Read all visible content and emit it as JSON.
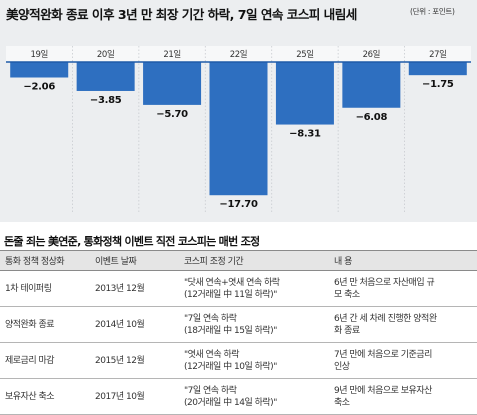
{
  "chart_data": {
    "type": "bar",
    "title": "美양적완화 종료 이후 3년 만 최장 기간 하락, 7일 연속 코스피 내림세",
    "unit": "(단위 : 포인트)",
    "categories": [
      "19일",
      "20일",
      "21일",
      "22일",
      "25일",
      "26일",
      "27일"
    ],
    "values": [
      -2.06,
      -3.85,
      -5.7,
      -17.7,
      -8.31,
      -6.08,
      -1.75
    ],
    "value_labels": [
      "−2.06",
      "−3.85",
      "−5.70",
      "−17.70",
      "−8.31",
      "−6.08",
      "−1.75"
    ],
    "ylim": [
      -19,
      0
    ],
    "colors": {
      "bar": "#2e6fc0",
      "bar_top": "#1f5aa8",
      "panel": "#eceef0"
    }
  },
  "table": {
    "title": "돈줄 죄는 美연준, 통화정책 이벤트 직전 코스피는 매번 조정",
    "headers": [
      "통화 정책 정상화",
      "이벤트 날짜",
      "코스피 조정 기간",
      "내 용"
    ],
    "rows": [
      {
        "policy": "1차 테이퍼링",
        "date": "2013년 12월",
        "period": [
          "\"닷새 연속+엿새 연속 하락",
          "(12거래일 中 11일 하락)\""
        ],
        "content": [
          "6년 만 처음으로 자산매입 규",
          "모 축소"
        ]
      },
      {
        "policy": "양적완화 종료",
        "date": "2014년 10월",
        "period": [
          "\"7일 연속 하락",
          "(18거래일 中 15일 하락)\""
        ],
        "content": [
          "6년 간 세 차례 진행한 양적완",
          "화 종료"
        ]
      },
      {
        "policy": "제로금리 마감",
        "date": "2015년 12월",
        "period": [
          "\"엿새 연속 하락",
          "(12거래일 中 10일 하락)\""
        ],
        "content": [
          "7년 만에 처음으로 기준금리",
          "인상"
        ]
      },
      {
        "policy": "보유자산 축소",
        "date": "2017년 10월",
        "period": [
          "\"7일 연속 하락",
          "(20거래일 中 14일 하락)\""
        ],
        "content": [
          "9년 만에 처음으로 보유자산",
          "축소"
        ]
      }
    ]
  }
}
